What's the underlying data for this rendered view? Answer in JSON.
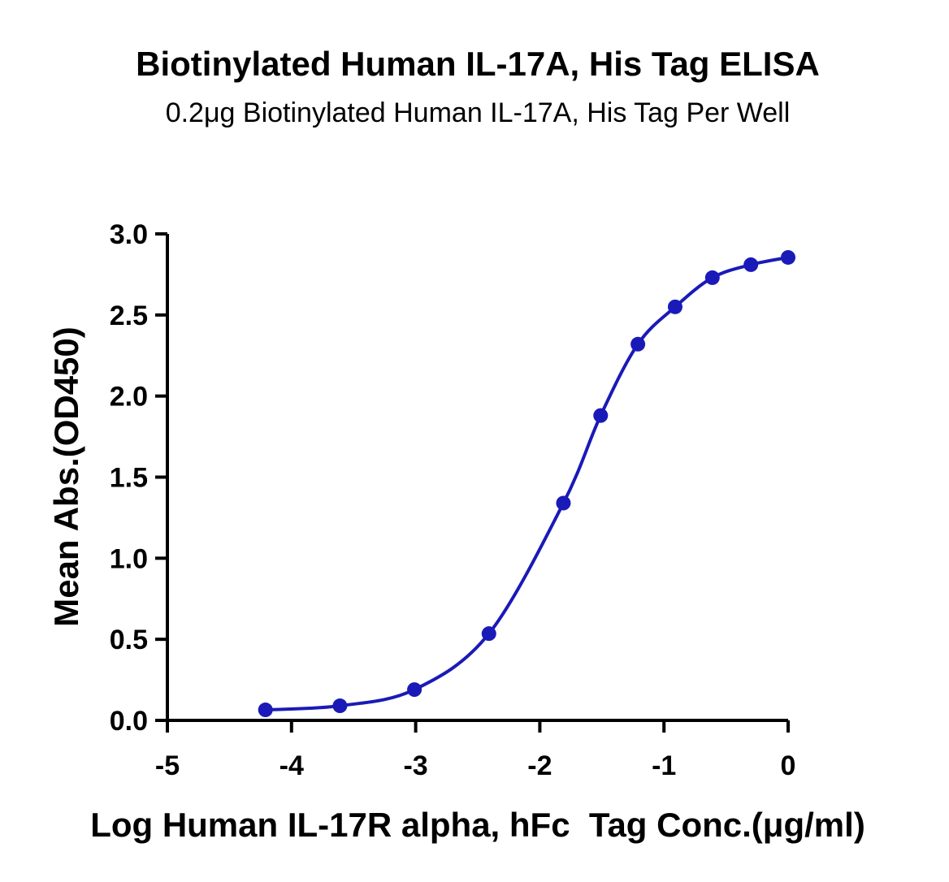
{
  "chart_data": {
    "type": "scatter",
    "title": "Biotinylated Human IL-17A, His Tag ELISA",
    "subtitle": "0.2μg Biotinylated Human IL-17A, His Tag Per Well",
    "xlabel": "Log Human IL-17R alpha, hFc  Tag Conc.(μg/ml)",
    "ylabel": "Mean Abs.(OD450)",
    "xlim": [
      -5,
      0
    ],
    "ylim": [
      0,
      3.0
    ],
    "x_ticks": [
      -5,
      -4,
      -3,
      -2,
      -1,
      0
    ],
    "x_tick_labels": [
      "-5",
      "-4",
      "-3",
      "-2",
      "-1",
      "0"
    ],
    "y_ticks": [
      0,
      0.5,
      1.0,
      1.5,
      2.0,
      2.5,
      3.0
    ],
    "y_tick_labels": [
      "0.0",
      "0.5",
      "1.0",
      "1.5",
      "2.0",
      "2.5",
      "3.0"
    ],
    "grid": false,
    "series": [
      {
        "color": "#1a1ab8",
        "x": [
          -4.21,
          -3.61,
          -3.01,
          -2.41,
          -1.81,
          -1.51,
          -1.21,
          -0.91,
          -0.61,
          -0.3,
          0.0
        ],
        "y": [
          0.065,
          0.09,
          0.19,
          0.535,
          1.34,
          1.88,
          2.32,
          2.55,
          2.73,
          2.81,
          2.855
        ]
      }
    ]
  }
}
